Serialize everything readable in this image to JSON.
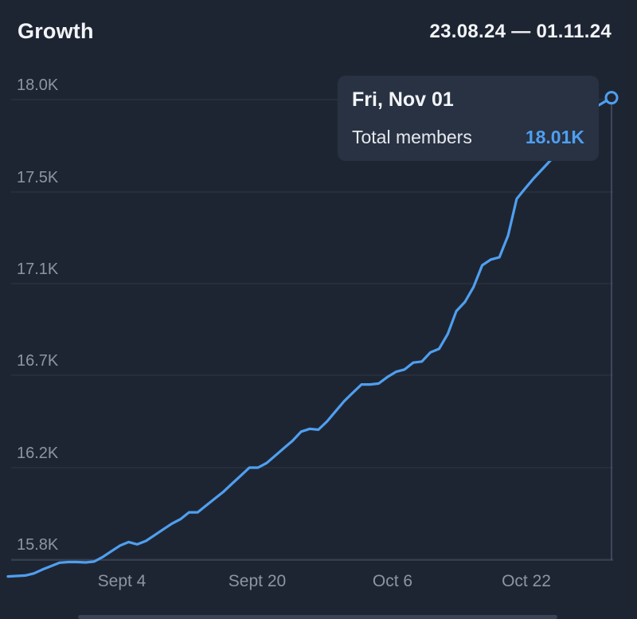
{
  "header": {
    "title": "Growth",
    "date_range": "23.08.24 — 01.11.24"
  },
  "tooltip": {
    "date": "Fri, Nov 01",
    "label": "Total members",
    "value": "18.01K"
  },
  "colors": {
    "background": "#1e2532",
    "line": "#4f9ff0",
    "grid": "#2f3847",
    "axis_text": "#8b95a5",
    "tooltip_bg": "#283243"
  },
  "chart_data": {
    "type": "line",
    "title": "Growth",
    "xlabel": "",
    "ylabel": "",
    "x_tick_labels": [
      "Sept 4",
      "Sept 20",
      "Oct 6",
      "Oct 22"
    ],
    "y_tick_labels": [
      "18.0K",
      "17.5K",
      "17.1K",
      "16.7K",
      "16.2K",
      "15.8K"
    ],
    "y_ticks": [
      18000,
      17500,
      17100,
      16700,
      16200,
      15800
    ],
    "ylim": [
      15725,
      18050
    ],
    "xlim": [
      "2024-08-23",
      "2024-11-01"
    ],
    "grid": true,
    "series": [
      {
        "values": [
          {
            "x": "2024-08-23",
            "y": 15725
          },
          {
            "x": "2024-08-24",
            "y": 15727
          },
          {
            "x": "2024-08-25",
            "y": 15729
          },
          {
            "x": "2024-08-26",
            "y": 15738
          },
          {
            "x": "2024-08-27",
            "y": 15755
          },
          {
            "x": "2024-08-28",
            "y": 15770
          },
          {
            "x": "2024-08-29",
            "y": 15785
          },
          {
            "x": "2024-08-30",
            "y": 15788
          },
          {
            "x": "2024-08-31",
            "y": 15788
          },
          {
            "x": "2024-09-01",
            "y": 15786
          },
          {
            "x": "2024-09-02",
            "y": 15790
          },
          {
            "x": "2024-09-03",
            "y": 15810
          },
          {
            "x": "2024-09-04",
            "y": 15835
          },
          {
            "x": "2024-09-05",
            "y": 15860
          },
          {
            "x": "2024-09-06",
            "y": 15875
          },
          {
            "x": "2024-09-07",
            "y": 15865
          },
          {
            "x": "2024-09-08",
            "y": 15880
          },
          {
            "x": "2024-09-09",
            "y": 15905
          },
          {
            "x": "2024-09-10",
            "y": 15930
          },
          {
            "x": "2024-09-11",
            "y": 15955
          },
          {
            "x": "2024-09-12",
            "y": 15975
          },
          {
            "x": "2024-09-13",
            "y": 16005
          },
          {
            "x": "2024-09-14",
            "y": 16005
          },
          {
            "x": "2024-09-15",
            "y": 16035
          },
          {
            "x": "2024-09-16",
            "y": 16065
          },
          {
            "x": "2024-09-17",
            "y": 16095
          },
          {
            "x": "2024-09-18",
            "y": 16130
          },
          {
            "x": "2024-09-19",
            "y": 16165
          },
          {
            "x": "2024-09-20",
            "y": 16200
          },
          {
            "x": "2024-09-21",
            "y": 16200
          },
          {
            "x": "2024-09-22",
            "y": 16225
          },
          {
            "x": "2024-09-23",
            "y": 16265
          },
          {
            "x": "2024-09-24",
            "y": 16305
          },
          {
            "x": "2024-09-25",
            "y": 16345
          },
          {
            "x": "2024-09-26",
            "y": 16395
          },
          {
            "x": "2024-09-27",
            "y": 16410
          },
          {
            "x": "2024-09-28",
            "y": 16405
          },
          {
            "x": "2024-09-29",
            "y": 16450
          },
          {
            "x": "2024-09-30",
            "y": 16505
          },
          {
            "x": "2024-10-01",
            "y": 16560
          },
          {
            "x": "2024-10-02",
            "y": 16605
          },
          {
            "x": "2024-10-03",
            "y": 16650
          },
          {
            "x": "2024-10-04",
            "y": 16650
          },
          {
            "x": "2024-10-05",
            "y": 16655
          },
          {
            "x": "2024-10-06",
            "y": 16690
          },
          {
            "x": "2024-10-07",
            "y": 16715
          },
          {
            "x": "2024-10-08",
            "y": 16725
          },
          {
            "x": "2024-10-09",
            "y": 16755
          },
          {
            "x": "2024-10-10",
            "y": 16760
          },
          {
            "x": "2024-10-11",
            "y": 16800
          },
          {
            "x": "2024-10-12",
            "y": 16815
          },
          {
            "x": "2024-10-13",
            "y": 16880
          },
          {
            "x": "2024-10-14",
            "y": 16980
          },
          {
            "x": "2024-10-15",
            "y": 17020
          },
          {
            "x": "2024-10-16",
            "y": 17085
          },
          {
            "x": "2024-10-17",
            "y": 17180
          },
          {
            "x": "2024-10-18",
            "y": 17205
          },
          {
            "x": "2024-10-19",
            "y": 17215
          },
          {
            "x": "2024-10-20",
            "y": 17310
          },
          {
            "x": "2024-10-21",
            "y": 17470
          },
          {
            "x": "2024-10-22",
            "y": 17520
          },
          {
            "x": "2024-10-23",
            "y": 17575
          },
          {
            "x": "2024-10-24",
            "y": 17625
          },
          {
            "x": "2024-10-25",
            "y": 17675
          },
          {
            "x": "2024-10-26",
            "y": 17735
          },
          {
            "x": "2024-10-27",
            "y": 17800
          },
          {
            "x": "2024-10-28",
            "y": 17850
          },
          {
            "x": "2024-10-29",
            "y": 17900
          },
          {
            "x": "2024-10-30",
            "y": 17955
          },
          {
            "x": "2024-11-01",
            "y": 18010
          }
        ]
      }
    ]
  }
}
